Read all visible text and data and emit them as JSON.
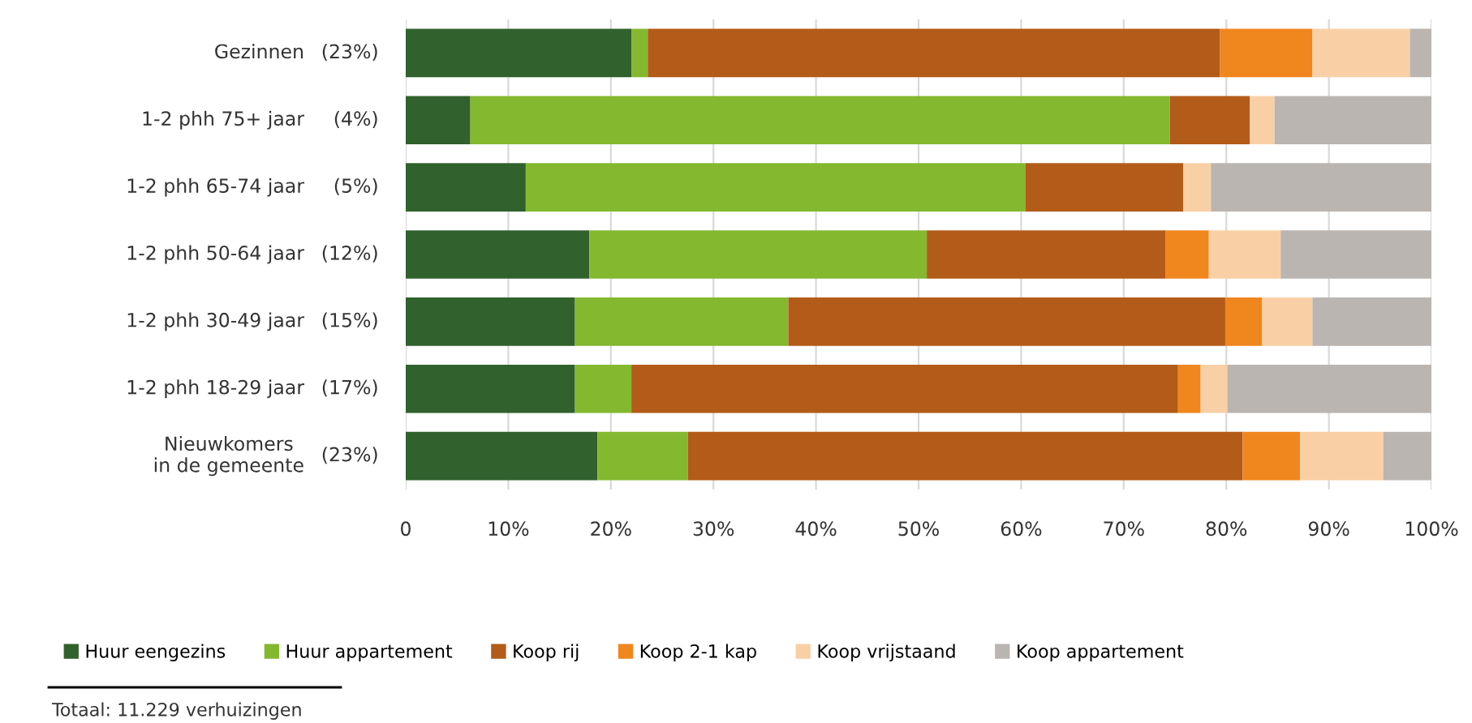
{
  "chart_data": {
    "type": "bar",
    "orientation": "horizontal",
    "stacked": true,
    "categories": [
      "Gezinnen (23%)",
      "1-2 phh 75+ jaar (4%)",
      "1-2 phh 65-74 jaar (5%)",
      "1-2 phh 50-64 jaar (12%)",
      "1-2 phh 30-49 jaar (15%)",
      "1-2 phh 18-29 jaar (17%)",
      "Nieuwkomers\nin de gemeente (23%)"
    ],
    "series": [
      {
        "name": "Huur eengezins",
        "color": "#31612c",
        "values": [
          22.0,
          6.3,
          11.7,
          17.9,
          16.5,
          16.5,
          18.7
        ]
      },
      {
        "name": "Huur appartement",
        "color": "#84b82f",
        "values": [
          1.6,
          68.2,
          48.7,
          32.9,
          20.8,
          5.5,
          8.8
        ]
      },
      {
        "name": "Koop rij",
        "color": "#b35b18",
        "values": [
          55.8,
          7.8,
          15.4,
          23.3,
          42.6,
          53.3,
          54.1
        ]
      },
      {
        "name": "Koop 2-1 kap",
        "color": "#f0861e",
        "values": [
          9.0,
          0,
          0,
          4.2,
          3.6,
          2.2,
          5.6
        ]
      },
      {
        "name": "Koop vrijstaand",
        "color": "#f9d0a5",
        "values": [
          9.5,
          2.4,
          2.7,
          7.0,
          4.9,
          2.6,
          8.1
        ]
      },
      {
        "name": "Koop appartement",
        "color": "#bab5b1",
        "values": [
          2.1,
          15.3,
          21.5,
          14.7,
          11.6,
          19.9,
          4.7
        ]
      }
    ],
    "xlim": [
      0,
      100
    ],
    "xticks": [
      0,
      {
        "value": 10,
        "label": "10%"
      },
      {
        "value": 20,
        "label": "20%"
      },
      {
        "value": 30,
        "label": "30%"
      },
      {
        "value": 40,
        "label": "40%"
      },
      {
        "value": 50,
        "label": "50%"
      },
      {
        "value": 60,
        "label": "60%"
      },
      {
        "value": 70,
        "label": "70%"
      },
      {
        "value": 80,
        "label": "80%"
      },
      {
        "value": 90,
        "label": "90%"
      },
      {
        "value": 100,
        "label": "100%"
      }
    ],
    "grid": "x",
    "legend": "bottom",
    "annotations": [
      "Totaal: 11.229 verhuizingen"
    ]
  }
}
